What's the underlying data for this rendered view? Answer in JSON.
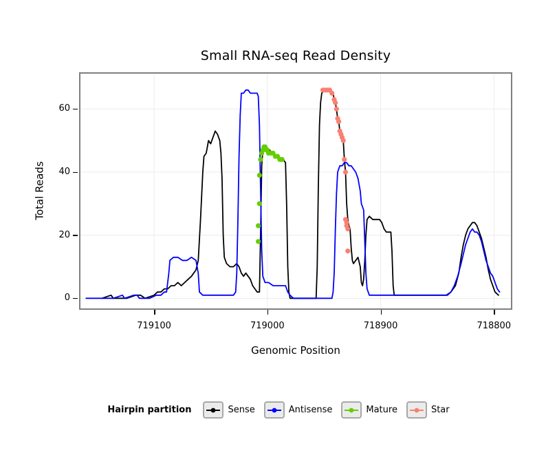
{
  "title": "Small RNA-seq Read Density",
  "xlabel": "Genomic Position",
  "ylabel": "Total Reads",
  "legend": {
    "title": "Hairpin partition",
    "items": [
      {
        "label": "Sense",
        "color": "#000000"
      },
      {
        "label": "Antisense",
        "color": "#0000ff"
      },
      {
        "label": "Mature",
        "color": "#66cd00"
      },
      {
        "label": "Star",
        "color": "#fa8072"
      }
    ]
  },
  "chart_data": {
    "type": "line",
    "title": "Small RNA-seq Read Density",
    "xlabel": "Genomic Position",
    "ylabel": "Total Reads",
    "x_reversed": true,
    "xlim": [
      719165,
      718785
    ],
    "ylim": [
      -3.2,
      71.2
    ],
    "xticks": [
      719100,
      719000,
      718900,
      718800
    ],
    "yticks": [
      0,
      20,
      40,
      60
    ],
    "grid": true,
    "grid_color": "#ececec",
    "panel_border_color": "#7f7f7f",
    "legend_position": "bottom",
    "series": [
      {
        "name": "Sense",
        "type": "line",
        "color": "#000000",
        "points": [
          [
            719146,
            0
          ],
          [
            719138,
            1
          ],
          [
            719136,
            0
          ],
          [
            719124,
            0
          ],
          [
            719116,
            1
          ],
          [
            719112,
            1
          ],
          [
            719108,
            0
          ],
          [
            719100,
            1
          ],
          [
            719097,
            2
          ],
          [
            719094,
            2
          ],
          [
            719091,
            3
          ],
          [
            719088,
            3
          ],
          [
            719085,
            4
          ],
          [
            719082,
            4
          ],
          [
            719079,
            5
          ],
          [
            719076,
            4
          ],
          [
            719073,
            5
          ],
          [
            719070,
            6
          ],
          [
            719067,
            7
          ],
          [
            719065,
            8
          ],
          [
            719063,
            9
          ],
          [
            719061,
            12
          ],
          [
            719059,
            25
          ],
          [
            719057,
            40
          ],
          [
            719056,
            45
          ],
          [
            719054,
            46
          ],
          [
            719052,
            50
          ],
          [
            719050,
            49
          ],
          [
            719048,
            51
          ],
          [
            719046,
            53
          ],
          [
            719044,
            52
          ],
          [
            719042,
            50
          ],
          [
            719041,
            46
          ],
          [
            719040,
            38
          ],
          [
            719039,
            20
          ],
          [
            719038,
            13
          ],
          [
            719036,
            11
          ],
          [
            719033,
            10
          ],
          [
            719030,
            10
          ],
          [
            719027,
            11
          ],
          [
            719025,
            10
          ],
          [
            719023,
            8
          ],
          [
            719021,
            7
          ],
          [
            719019,
            8
          ],
          [
            719017,
            7
          ],
          [
            719015,
            6
          ],
          [
            719013,
            4
          ],
          [
            719011,
            3
          ],
          [
            719009,
            2
          ],
          [
            719007,
            2
          ],
          [
            719006,
            20
          ],
          [
            719005,
            42
          ],
          [
            719004,
            47
          ],
          [
            719003,
            48
          ],
          [
            719002,
            48
          ],
          [
            719000,
            47
          ],
          [
            718998,
            47
          ],
          [
            718996,
            46
          ],
          [
            718994,
            46
          ],
          [
            718992,
            45
          ],
          [
            718990,
            45
          ],
          [
            718988,
            44
          ],
          [
            718986,
            44
          ],
          [
            718984,
            43
          ],
          [
            718983,
            30
          ],
          [
            718982,
            10
          ],
          [
            718981,
            2
          ],
          [
            718980,
            0
          ],
          [
            718972,
            0
          ],
          [
            718964,
            0
          ],
          [
            718957,
            0
          ],
          [
            718956,
            10
          ],
          [
            718955,
            35
          ],
          [
            718954,
            55
          ],
          [
            718953,
            62
          ],
          [
            718952,
            65
          ],
          [
            718950,
            66
          ],
          [
            718947,
            66
          ],
          [
            718944,
            66
          ],
          [
            718942,
            65
          ],
          [
            718941,
            63
          ],
          [
            718940,
            62
          ],
          [
            718939,
            60
          ],
          [
            718938,
            57
          ],
          [
            718937,
            56
          ],
          [
            718936,
            53
          ],
          [
            718935,
            52
          ],
          [
            718934,
            51
          ],
          [
            718933,
            50
          ],
          [
            718932,
            44
          ],
          [
            718931,
            40
          ],
          [
            718930,
            30
          ],
          [
            718929,
            25
          ],
          [
            718928,
            23
          ],
          [
            718927,
            22
          ],
          [
            718926,
            16
          ],
          [
            718925,
            12
          ],
          [
            718924,
            11
          ],
          [
            718922,
            12
          ],
          [
            718920,
            13
          ],
          [
            718918,
            10
          ],
          [
            718917,
            5
          ],
          [
            718916,
            4
          ],
          [
            718915,
            6
          ],
          [
            718914,
            12
          ],
          [
            718913,
            20
          ],
          [
            718912,
            25
          ],
          [
            718910,
            26
          ],
          [
            718907,
            25
          ],
          [
            718904,
            25
          ],
          [
            718901,
            25
          ],
          [
            718899,
            24
          ],
          [
            718897,
            22
          ],
          [
            718895,
            21
          ],
          [
            718893,
            21
          ],
          [
            718891,
            21
          ],
          [
            718890,
            15
          ],
          [
            718889,
            4
          ],
          [
            718888,
            1
          ],
          [
            718880,
            1
          ],
          [
            718872,
            1
          ],
          [
            718864,
            1
          ],
          [
            718856,
            1
          ],
          [
            718848,
            1
          ],
          [
            718842,
            1
          ],
          [
            718838,
            2
          ],
          [
            718834,
            4
          ],
          [
            718831,
            8
          ],
          [
            718829,
            13
          ],
          [
            718827,
            17
          ],
          [
            718825,
            20
          ],
          [
            718823,
            22
          ],
          [
            718821,
            23
          ],
          [
            718819,
            24
          ],
          [
            718817,
            24
          ],
          [
            718815,
            23
          ],
          [
            718813,
            21
          ],
          [
            718811,
            19
          ],
          [
            718809,
            16
          ],
          [
            718807,
            13
          ],
          [
            718805,
            9
          ],
          [
            718803,
            6
          ],
          [
            718801,
            4
          ],
          [
            718799,
            2
          ],
          [
            718796,
            1
          ]
        ]
      },
      {
        "name": "Antisense",
        "type": "line",
        "color": "#0000ff",
        "points": [
          [
            719160,
            0
          ],
          [
            719148,
            0
          ],
          [
            719136,
            0
          ],
          [
            719128,
            1
          ],
          [
            719126,
            0
          ],
          [
            719118,
            1
          ],
          [
            719115,
            1
          ],
          [
            719113,
            0
          ],
          [
            719104,
            0
          ],
          [
            719098,
            1
          ],
          [
            719094,
            1
          ],
          [
            719091,
            2
          ],
          [
            719089,
            2
          ],
          [
            719087,
            8
          ],
          [
            719086,
            12
          ],
          [
            719083,
            13
          ],
          [
            719079,
            13
          ],
          [
            719075,
            12
          ],
          [
            719071,
            12
          ],
          [
            719067,
            13
          ],
          [
            719063,
            12
          ],
          [
            719061,
            8
          ],
          [
            719060,
            2
          ],
          [
            719057,
            1
          ],
          [
            719050,
            1
          ],
          [
            719043,
            1
          ],
          [
            719036,
            1
          ],
          [
            719030,
            1
          ],
          [
            719028,
            2
          ],
          [
            719027,
            8
          ],
          [
            719026,
            25
          ],
          [
            719025,
            45
          ],
          [
            719024,
            58
          ],
          [
            719023,
            65
          ],
          [
            719021,
            65
          ],
          [
            719019,
            66
          ],
          [
            719017,
            66
          ],
          [
            719015,
            65
          ],
          [
            719013,
            65
          ],
          [
            719011,
            65
          ],
          [
            719009,
            65
          ],
          [
            719008,
            64
          ],
          [
            719007,
            55
          ],
          [
            719006,
            35
          ],
          [
            719005,
            15
          ],
          [
            719004,
            7
          ],
          [
            719002,
            5
          ],
          [
            718999,
            5
          ],
          [
            718995,
            4
          ],
          [
            718991,
            4
          ],
          [
            718987,
            4
          ],
          [
            718984,
            4
          ],
          [
            718982,
            2
          ],
          [
            718980,
            1
          ],
          [
            718977,
            0
          ],
          [
            718968,
            0
          ],
          [
            718958,
            0
          ],
          [
            718948,
            0
          ],
          [
            718943,
            0
          ],
          [
            718942,
            2
          ],
          [
            718941,
            8
          ],
          [
            718940,
            22
          ],
          [
            718939,
            33
          ],
          [
            718938,
            40
          ],
          [
            718936,
            42
          ],
          [
            718934,
            42
          ],
          [
            718932,
            43
          ],
          [
            718930,
            43
          ],
          [
            718928,
            42
          ],
          [
            718926,
            42
          ],
          [
            718924,
            41
          ],
          [
            718922,
            40
          ],
          [
            718920,
            38
          ],
          [
            718918,
            34
          ],
          [
            718917,
            30
          ],
          [
            718915,
            28
          ],
          [
            718914,
            18
          ],
          [
            718913,
            8
          ],
          [
            718912,
            3
          ],
          [
            718910,
            1
          ],
          [
            718906,
            1
          ],
          [
            718900,
            1
          ],
          [
            718892,
            1
          ],
          [
            718884,
            1
          ],
          [
            718876,
            1
          ],
          [
            718868,
            1
          ],
          [
            718860,
            1
          ],
          [
            718852,
            1
          ],
          [
            718846,
            1
          ],
          [
            718841,
            1
          ],
          [
            718838,
            2
          ],
          [
            718835,
            4
          ],
          [
            718832,
            7
          ],
          [
            718829,
            11
          ],
          [
            718827,
            14
          ],
          [
            718825,
            17
          ],
          [
            718823,
            19
          ],
          [
            718821,
            21
          ],
          [
            718819,
            22
          ],
          [
            718817,
            21
          ],
          [
            718815,
            21
          ],
          [
            718813,
            20
          ],
          [
            718811,
            18
          ],
          [
            718809,
            15
          ],
          [
            718807,
            12
          ],
          [
            718805,
            10
          ],
          [
            718803,
            8
          ],
          [
            718801,
            7
          ],
          [
            718799,
            5
          ],
          [
            718797,
            3
          ],
          [
            718795,
            2
          ]
        ]
      },
      {
        "name": "Mature",
        "type": "scatter",
        "color": "#66cd00",
        "points": [
          [
            719008,
            18
          ],
          [
            719008,
            23
          ],
          [
            719007,
            30
          ],
          [
            719007,
            39
          ],
          [
            719006,
            44
          ],
          [
            719005,
            46
          ],
          [
            719004,
            47
          ],
          [
            719003,
            48
          ],
          [
            719002,
            48
          ],
          [
            719001,
            47
          ],
          [
            719000,
            47
          ],
          [
            718999,
            46
          ],
          [
            718997,
            46
          ],
          [
            718995,
            46
          ],
          [
            718993,
            45
          ],
          [
            718991,
            45
          ],
          [
            718989,
            44
          ],
          [
            718988,
            44
          ],
          [
            718987,
            44
          ]
        ]
      },
      {
        "name": "Star",
        "type": "scatter",
        "color": "#fa8072",
        "points": [
          [
            718951,
            66
          ],
          [
            718949,
            66
          ],
          [
            718947,
            66
          ],
          [
            718945,
            66
          ],
          [
            718943,
            65
          ],
          [
            718941,
            63
          ],
          [
            718940,
            62
          ],
          [
            718939,
            60
          ],
          [
            718938,
            57
          ],
          [
            718937,
            56
          ],
          [
            718936,
            53
          ],
          [
            718935,
            52
          ],
          [
            718934,
            51
          ],
          [
            718933,
            50
          ],
          [
            718932,
            44
          ],
          [
            718931,
            40
          ],
          [
            718931,
            25
          ],
          [
            718930,
            24
          ],
          [
            718930,
            23
          ],
          [
            718929,
            22
          ],
          [
            718929,
            15
          ]
        ]
      }
    ]
  }
}
